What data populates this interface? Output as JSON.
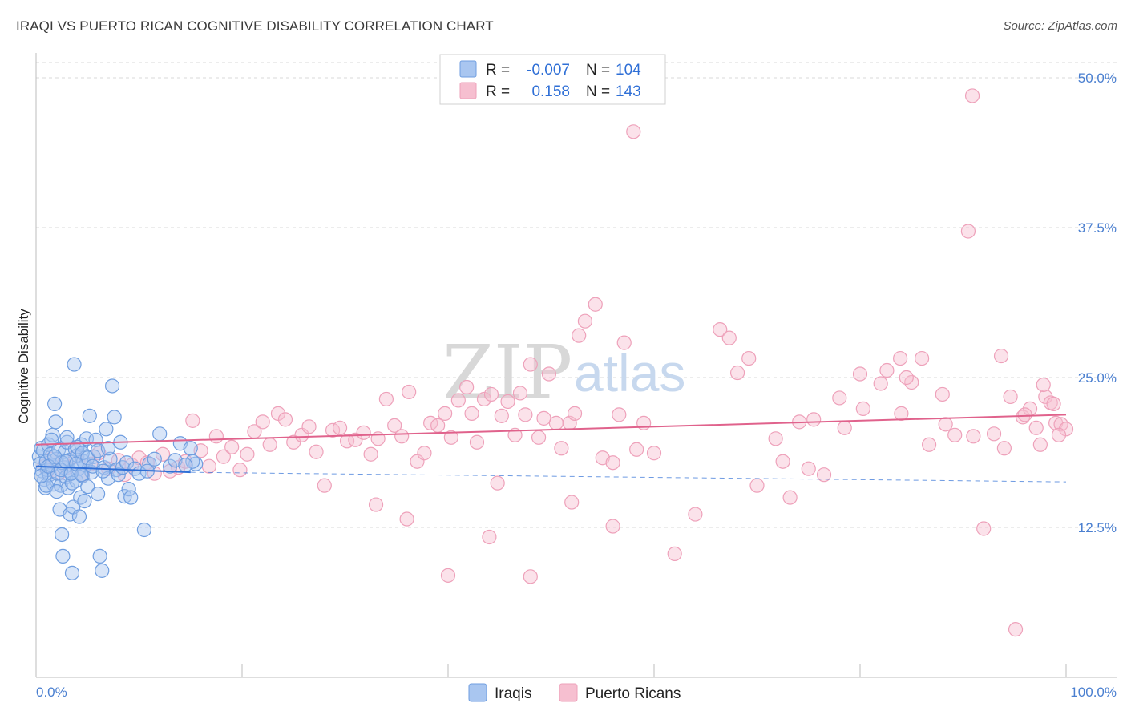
{
  "header": {
    "title": "IRAQI VS PUERTO RICAN COGNITIVE DISABILITY CORRELATION CHART",
    "source": "Source: ZipAtlas.com"
  },
  "watermark": {
    "zip": "ZIP",
    "atlas": "atlas"
  },
  "colors": {
    "blue_fill": "#a9c6f0",
    "blue_stroke": "#6f9ee0",
    "blue_line": "#2f6fd6",
    "pink_fill": "#f6bfd0",
    "pink_stroke": "#eea1ba",
    "pink_line": "#e0628c",
    "grid": "#d9d9d9",
    "tick_text": "#4a7fd0"
  },
  "chart_data": {
    "type": "scatter",
    "title": "IRAQI VS PUERTO RICAN COGNITIVE DISABILITY CORRELATION CHART",
    "xlabel": "",
    "ylabel": "Cognitive Disability",
    "xlim": [
      0,
      100
    ],
    "ylim": [
      0,
      52
    ],
    "x_tick_labels": [
      "0.0%",
      "100.0%"
    ],
    "y_ticks": [
      12.5,
      25.0,
      37.5,
      50.0
    ],
    "y_tick_labels": [
      "12.5%",
      "25.0%",
      "37.5%",
      "50.0%"
    ],
    "grid": true,
    "legend_position": "top-center",
    "stats": [
      {
        "r_label": "R =",
        "r_value": "-0.007",
        "n_label": "N =",
        "n_value": "104"
      },
      {
        "r_label": "R =",
        "r_value": "0.158",
        "n_label": "N =",
        "n_value": "143"
      }
    ],
    "series": [
      {
        "name": "Iraqis",
        "trend": {
          "x": [
            0,
            15
          ],
          "y": [
            17.6,
            17.1
          ],
          "dashed_extension_to": 100,
          "dashed_end_y": 16.3
        },
        "points": [
          [
            0.3,
            18.4
          ],
          [
            0.4,
            17.8
          ],
          [
            0.5,
            19.1
          ],
          [
            0.6,
            17.2
          ],
          [
            0.7,
            18.9
          ],
          [
            0.8,
            16.5
          ],
          [
            0.9,
            15.8
          ],
          [
            1.0,
            18.0
          ],
          [
            1.1,
            17.3
          ],
          [
            1.2,
            19.4
          ],
          [
            1.3,
            16.9
          ],
          [
            1.4,
            18.6
          ],
          [
            1.5,
            17.7
          ],
          [
            1.6,
            20.2
          ],
          [
            1.7,
            16.1
          ],
          [
            1.8,
            22.8
          ],
          [
            1.9,
            21.3
          ],
          [
            2.0,
            18.2
          ],
          [
            2.1,
            17.0
          ],
          [
            2.2,
            19.0
          ],
          [
            2.3,
            14.0
          ],
          [
            2.4,
            16.0
          ],
          [
            2.5,
            11.9
          ],
          [
            2.6,
            10.1
          ],
          [
            2.7,
            17.5
          ],
          [
            2.8,
            18.8
          ],
          [
            2.9,
            16.7
          ],
          [
            3.0,
            19.6
          ],
          [
            3.1,
            15.8
          ],
          [
            3.2,
            18.1
          ],
          [
            3.3,
            13.6
          ],
          [
            3.4,
            17.1
          ],
          [
            3.5,
            8.7
          ],
          [
            3.6,
            14.2
          ],
          [
            3.7,
            26.1
          ],
          [
            3.8,
            19.0
          ],
          [
            3.9,
            16.4
          ],
          [
            4.0,
            18.5
          ],
          [
            4.1,
            17.4
          ],
          [
            4.2,
            13.4
          ],
          [
            4.3,
            15.0
          ],
          [
            4.4,
            19.4
          ],
          [
            4.5,
            16.8
          ],
          [
            4.6,
            18.0
          ],
          [
            4.7,
            14.7
          ],
          [
            4.8,
            17.7
          ],
          [
            4.9,
            19.9
          ],
          [
            5.0,
            15.9
          ],
          [
            5.2,
            21.8
          ],
          [
            5.4,
            17.1
          ],
          [
            5.6,
            18.4
          ],
          [
            5.8,
            19.8
          ],
          [
            6.0,
            15.3
          ],
          [
            6.2,
            10.1
          ],
          [
            6.4,
            8.9
          ],
          [
            6.6,
            17.5
          ],
          [
            6.8,
            20.7
          ],
          [
            7.0,
            16.6
          ],
          [
            7.2,
            18.2
          ],
          [
            7.4,
            24.3
          ],
          [
            7.6,
            21.7
          ],
          [
            7.8,
            17.3
          ],
          [
            8.0,
            16.9
          ],
          [
            8.2,
            19.6
          ],
          [
            8.4,
            17.5
          ],
          [
            8.6,
            15.1
          ],
          [
            8.8,
            17.9
          ],
          [
            9.0,
            15.7
          ],
          [
            9.2,
            15.0
          ],
          [
            9.6,
            17.4
          ],
          [
            10.0,
            17.0
          ],
          [
            10.5,
            12.3
          ],
          [
            11.0,
            17.8
          ],
          [
            12.0,
            20.3
          ],
          [
            13.0,
            17.6
          ],
          [
            14.0,
            19.5
          ],
          [
            15.0,
            19.1
          ],
          [
            15.5,
            17.8
          ],
          [
            11.5,
            18.2
          ],
          [
            1.0,
            16.0
          ],
          [
            1.5,
            19.8
          ],
          [
            2.0,
            15.5
          ],
          [
            2.5,
            17.9
          ],
          [
            3.0,
            20.0
          ],
          [
            3.5,
            16.2
          ],
          [
            4.0,
            19.2
          ],
          [
            4.5,
            18.7
          ],
          [
            5.0,
            18.3
          ],
          [
            5.5,
            17.6
          ],
          [
            6.0,
            18.9
          ],
          [
            6.5,
            17.2
          ],
          [
            7.0,
            19.1
          ],
          [
            0.5,
            16.8
          ],
          [
            1.2,
            17.6
          ],
          [
            1.8,
            18.4
          ],
          [
            2.4,
            17.3
          ],
          [
            2.9,
            18.0
          ],
          [
            3.4,
            17.0
          ],
          [
            3.9,
            17.8
          ],
          [
            4.4,
            16.9
          ],
          [
            13.5,
            18.1
          ],
          [
            15.2,
            18.0
          ],
          [
            14.5,
            17.7
          ],
          [
            10.8,
            17.2
          ]
        ]
      },
      {
        "name": "Puerto Ricans",
        "trend": {
          "x": [
            0,
            100
          ],
          "y": [
            19.4,
            21.9
          ]
        },
        "points": [
          [
            0.8,
            17.6
          ],
          [
            1.5,
            18.2
          ],
          [
            2.2,
            17.0
          ],
          [
            3.0,
            17.5
          ],
          [
            3.8,
            18.4
          ],
          [
            4.5,
            16.9
          ],
          [
            5.3,
            17.8
          ],
          [
            6.1,
            18.7
          ],
          [
            7.0,
            17.4
          ],
          [
            8.0,
            18.1
          ],
          [
            8.6,
            16.9
          ],
          [
            9.3,
            17.7
          ],
          [
            10.0,
            18.3
          ],
          [
            10.8,
            17.9
          ],
          [
            11.5,
            17.0
          ],
          [
            12.3,
            18.6
          ],
          [
            13.0,
            17.2
          ],
          [
            13.8,
            17.5
          ],
          [
            14.5,
            18.0
          ],
          [
            15.2,
            21.4
          ],
          [
            16.0,
            18.9
          ],
          [
            16.8,
            17.6
          ],
          [
            17.5,
            20.1
          ],
          [
            18.2,
            18.4
          ],
          [
            19.0,
            19.2
          ],
          [
            19.8,
            17.3
          ],
          [
            20.5,
            18.6
          ],
          [
            21.2,
            20.5
          ],
          [
            22.0,
            21.3
          ],
          [
            22.7,
            19.4
          ],
          [
            23.5,
            22.0
          ],
          [
            24.2,
            21.5
          ],
          [
            25.0,
            19.6
          ],
          [
            25.8,
            20.2
          ],
          [
            26.5,
            20.9
          ],
          [
            27.2,
            18.8
          ],
          [
            28.0,
            16.0
          ],
          [
            28.8,
            20.6
          ],
          [
            29.5,
            20.8
          ],
          [
            30.2,
            19.7
          ],
          [
            31.0,
            19.8
          ],
          [
            31.8,
            20.4
          ],
          [
            32.5,
            18.6
          ],
          [
            33.2,
            19.9
          ],
          [
            34.0,
            23.2
          ],
          [
            34.8,
            21.0
          ],
          [
            35.5,
            20.1
          ],
          [
            36.2,
            23.8
          ],
          [
            37.0,
            18.0
          ],
          [
            37.7,
            18.7
          ],
          [
            38.3,
            21.2
          ],
          [
            39.0,
            21.0
          ],
          [
            39.7,
            22.0
          ],
          [
            40.3,
            20.0
          ],
          [
            41.0,
            23.1
          ],
          [
            41.8,
            24.2
          ],
          [
            42.3,
            22.0
          ],
          [
            42.8,
            19.6
          ],
          [
            43.5,
            23.2
          ],
          [
            44.2,
            23.6
          ],
          [
            44.8,
            16.2
          ],
          [
            45.2,
            21.8
          ],
          [
            45.8,
            23.0
          ],
          [
            46.5,
            20.2
          ],
          [
            47.0,
            23.7
          ],
          [
            47.5,
            21.9
          ],
          [
            48.0,
            26.1
          ],
          [
            48.8,
            20.0
          ],
          [
            49.3,
            21.6
          ],
          [
            49.8,
            25.3
          ],
          [
            50.5,
            21.2
          ],
          [
            51.0,
            19.1
          ],
          [
            51.8,
            21.2
          ],
          [
            52.3,
            22.0
          ],
          [
            52.7,
            28.5
          ],
          [
            53.3,
            29.7
          ],
          [
            54.3,
            31.1
          ],
          [
            55.0,
            18.3
          ],
          [
            56.0,
            17.9
          ],
          [
            56.6,
            21.9
          ],
          [
            57.1,
            27.9
          ],
          [
            58.0,
            45.5
          ],
          [
            58.3,
            19.0
          ],
          [
            59.0,
            21.2
          ],
          [
            62.0,
            10.3
          ],
          [
            66.4,
            29.0
          ],
          [
            67.3,
            28.3
          ],
          [
            68.1,
            25.4
          ],
          [
            69.2,
            26.6
          ],
          [
            71.8,
            19.9
          ],
          [
            73.2,
            15.0
          ],
          [
            74.1,
            21.3
          ],
          [
            75.0,
            17.4
          ],
          [
            76.5,
            16.9
          ],
          [
            78.0,
            23.3
          ],
          [
            80.3,
            22.4
          ],
          [
            82.6,
            25.6
          ],
          [
            83.9,
            26.6
          ],
          [
            85.0,
            24.6
          ],
          [
            86.7,
            19.4
          ],
          [
            88.3,
            21.1
          ],
          [
            89.2,
            20.2
          ],
          [
            90.5,
            37.2
          ],
          [
            90.9,
            48.5
          ],
          [
            92.0,
            12.4
          ],
          [
            93.7,
            26.8
          ],
          [
            94.6,
            23.4
          ],
          [
            95.1,
            4.0
          ],
          [
            95.8,
            21.7
          ],
          [
            96.5,
            22.4
          ],
          [
            97.1,
            20.8
          ],
          [
            97.5,
            19.4
          ],
          [
            98.0,
            23.4
          ],
          [
            98.5,
            22.9
          ],
          [
            99.0,
            21.2
          ],
          [
            99.5,
            21.1
          ],
          [
            100.0,
            20.7
          ],
          [
            36.0,
            13.2
          ],
          [
            40.0,
            8.5
          ],
          [
            33.0,
            14.4
          ],
          [
            44.0,
            11.7
          ],
          [
            48.0,
            8.4
          ],
          [
            52.0,
            14.6
          ],
          [
            56.0,
            12.6
          ],
          [
            60.0,
            18.7
          ],
          [
            64.0,
            13.6
          ],
          [
            70.0,
            16.0
          ],
          [
            75.5,
            21.5
          ],
          [
            78.5,
            20.8
          ],
          [
            80.0,
            25.3
          ],
          [
            82.0,
            24.5
          ],
          [
            84.0,
            22.0
          ],
          [
            86.0,
            26.6
          ],
          [
            88.0,
            23.6
          ],
          [
            91.0,
            20.1
          ],
          [
            93.0,
            20.3
          ],
          [
            94.0,
            19.1
          ],
          [
            96.0,
            21.9
          ],
          [
            97.8,
            24.4
          ],
          [
            98.8,
            22.8
          ],
          [
            99.3,
            20.2
          ],
          [
            84.5,
            25.0
          ],
          [
            72.5,
            18.0
          ]
        ]
      }
    ]
  }
}
